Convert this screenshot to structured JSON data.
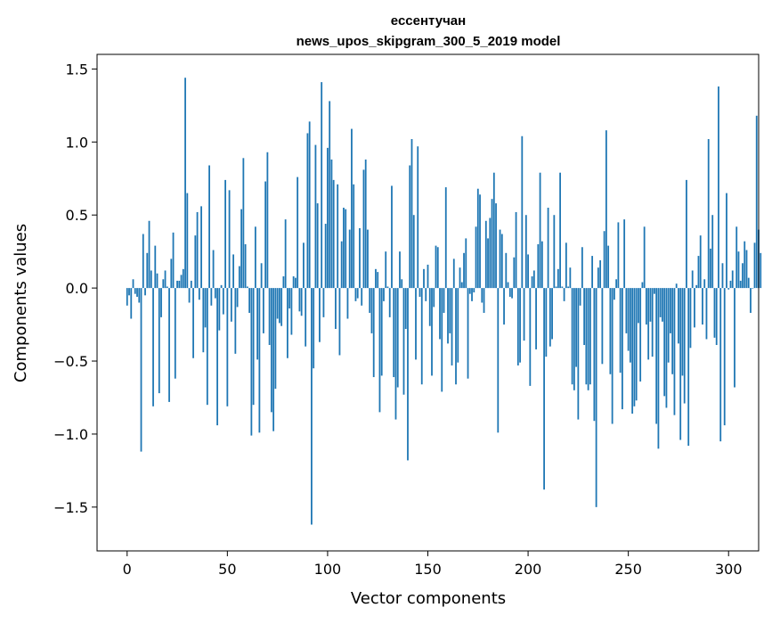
{
  "chart_data": {
    "type": "bar",
    "title_line1": "ессентучан",
    "title_line2": "news_upos_skipgram_300_5_2019 model",
    "xlabel": "Vector components",
    "ylabel": "Components values",
    "xlim": [
      -15,
      315
    ],
    "ylim": [
      -1.8,
      1.6
    ],
    "xticks": [
      0,
      50,
      100,
      150,
      200,
      250,
      300
    ],
    "xtick_labels": [
      "0",
      "50",
      "100",
      "150",
      "200",
      "250",
      "300"
    ],
    "yticks": [
      -1.5,
      -1.0,
      -0.5,
      0.0,
      0.5,
      1.0,
      1.5
    ],
    "ytick_labels": [
      "−1.5",
      "−1.0",
      "−0.5",
      "0.0",
      "0.5",
      "1.0",
      "1.5"
    ],
    "grid": false,
    "bar_color": "#1f77b4",
    "x_start": 0,
    "values": [
      -0.12,
      -0.05,
      -0.21,
      0.06,
      -0.04,
      -0.06,
      -0.1,
      -1.12,
      0.37,
      -0.05,
      0.24,
      0.46,
      0.12,
      -0.81,
      0.29,
      0.1,
      -0.72,
      -0.2,
      0.06,
      0.12,
      0.01,
      -0.78,
      0.2,
      0.38,
      -0.62,
      0.05,
      0.05,
      0.09,
      0.13,
      1.44,
      0.65,
      -0.1,
      0.05,
      -0.48,
      0.36,
      0.52,
      -0.08,
      0.56,
      -0.44,
      -0.27,
      -0.8,
      0.84,
      -0.12,
      0.26,
      -0.07,
      -0.94,
      -0.29,
      0.02,
      -0.18,
      0.74,
      -0.81,
      0.67,
      -0.23,
      0.23,
      -0.45,
      -0.13,
      0.15,
      0.54,
      0.89,
      0.3,
      0.01,
      -0.17,
      -1.01,
      -0.8,
      0.42,
      -0.49,
      -0.99,
      0.17,
      -0.31,
      0.73,
      0.93,
      -0.39,
      -0.85,
      -0.98,
      -0.69,
      -0.21,
      -0.24,
      -0.26,
      0.08,
      0.47,
      -0.48,
      -0.14,
      -0.32,
      0.08,
      0.07,
      0.76,
      -0.16,
      -0.19,
      0.31,
      -0.4,
      1.06,
      1.14,
      -1.62,
      -0.55,
      0.98,
      0.58,
      -0.37,
      1.41,
      -0.2,
      0.44,
      0.96,
      1.28,
      0.88,
      0.74,
      -0.28,
      0.71,
      -0.46,
      0.32,
      0.55,
      0.54,
      -0.21,
      0.4,
      1.09,
      0.71,
      -0.09,
      -0.07,
      0.41,
      -0.12,
      0.81,
      0.88,
      0.4,
      -0.17,
      -0.31,
      -0.61,
      0.13,
      0.11,
      -0.85,
      -0.6,
      -0.09,
      0.25,
      0.01,
      -0.2,
      0.7,
      -0.61,
      -0.9,
      -0.68,
      0.25,
      0.06,
      -0.73,
      -0.28,
      -1.18,
      0.84,
      1.02,
      0.5,
      -0.49,
      0.97,
      -0.06,
      -0.66,
      0.13,
      -0.09,
      0.16,
      -0.26,
      -0.6,
      -0.13,
      0.29,
      0.28,
      -0.35,
      -0.71,
      -0.17,
      0.69,
      -0.38,
      -0.31,
      -0.53,
      0.2,
      -0.66,
      -0.51,
      0.14,
      0.04,
      0.24,
      0.34,
      -0.62,
      -0.04,
      -0.09,
      -0.03,
      0.42,
      0.68,
      0.64,
      -0.1,
      -0.17,
      0.46,
      0.34,
      0.48,
      0.61,
      0.79,
      0.58,
      -0.99,
      0.4,
      0.37,
      -0.25,
      0.24,
      0.04,
      -0.06,
      -0.07,
      0.21,
      0.52,
      -0.53,
      -0.51,
      1.04,
      -0.36,
      0.5,
      0.23,
      -0.67,
      0.08,
      0.12,
      -0.42,
      0.3,
      0.79,
      0.32,
      -1.38,
      -0.47,
      0.55,
      -0.4,
      -0.35,
      0.5,
      0.01,
      0.13,
      0.79,
      0.01,
      -0.09,
      0.31,
      0.01,
      0.14,
      -0.66,
      -0.7,
      -0.54,
      -0.9,
      -0.12,
      0.28,
      -0.39,
      -0.66,
      -0.7,
      -0.66,
      0.22,
      -0.91,
      -1.5,
      0.14,
      0.19,
      -0.52,
      0.39,
      1.08,
      0.29,
      -0.59,
      -0.93,
      -0.08,
      0.06,
      0.45,
      -0.58,
      -0.83,
      0.47,
      -0.31,
      -0.43,
      -0.51,
      -0.86,
      -0.81,
      -0.77,
      -0.24,
      -0.64,
      0.04,
      0.42,
      -0.25,
      -0.49,
      -0.23,
      -0.47,
      -0.04,
      -0.93,
      -1.1,
      -0.2,
      -0.23,
      -0.74,
      -0.82,
      -0.51,
      -0.31,
      -0.59,
      -0.87,
      0.03,
      -0.38,
      -1.04,
      -0.6,
      -0.79,
      0.74,
      -1.08,
      -0.41,
      0.12,
      -0.27,
      0.02,
      0.22,
      0.36,
      -0.25,
      0.06,
      -0.35,
      1.02,
      0.27,
      0.5,
      -0.34,
      -0.39,
      1.38,
      -1.05,
      0.17,
      -0.94,
      0.65,
      -0.01,
      0.05,
      0.12,
      -0.68,
      0.42,
      0.25,
      0.05,
      0.17,
      0.32,
      0.26,
      0.07,
      -0.17,
      0.0,
      0.31,
      1.18,
      0.4,
      0.24
    ]
  }
}
